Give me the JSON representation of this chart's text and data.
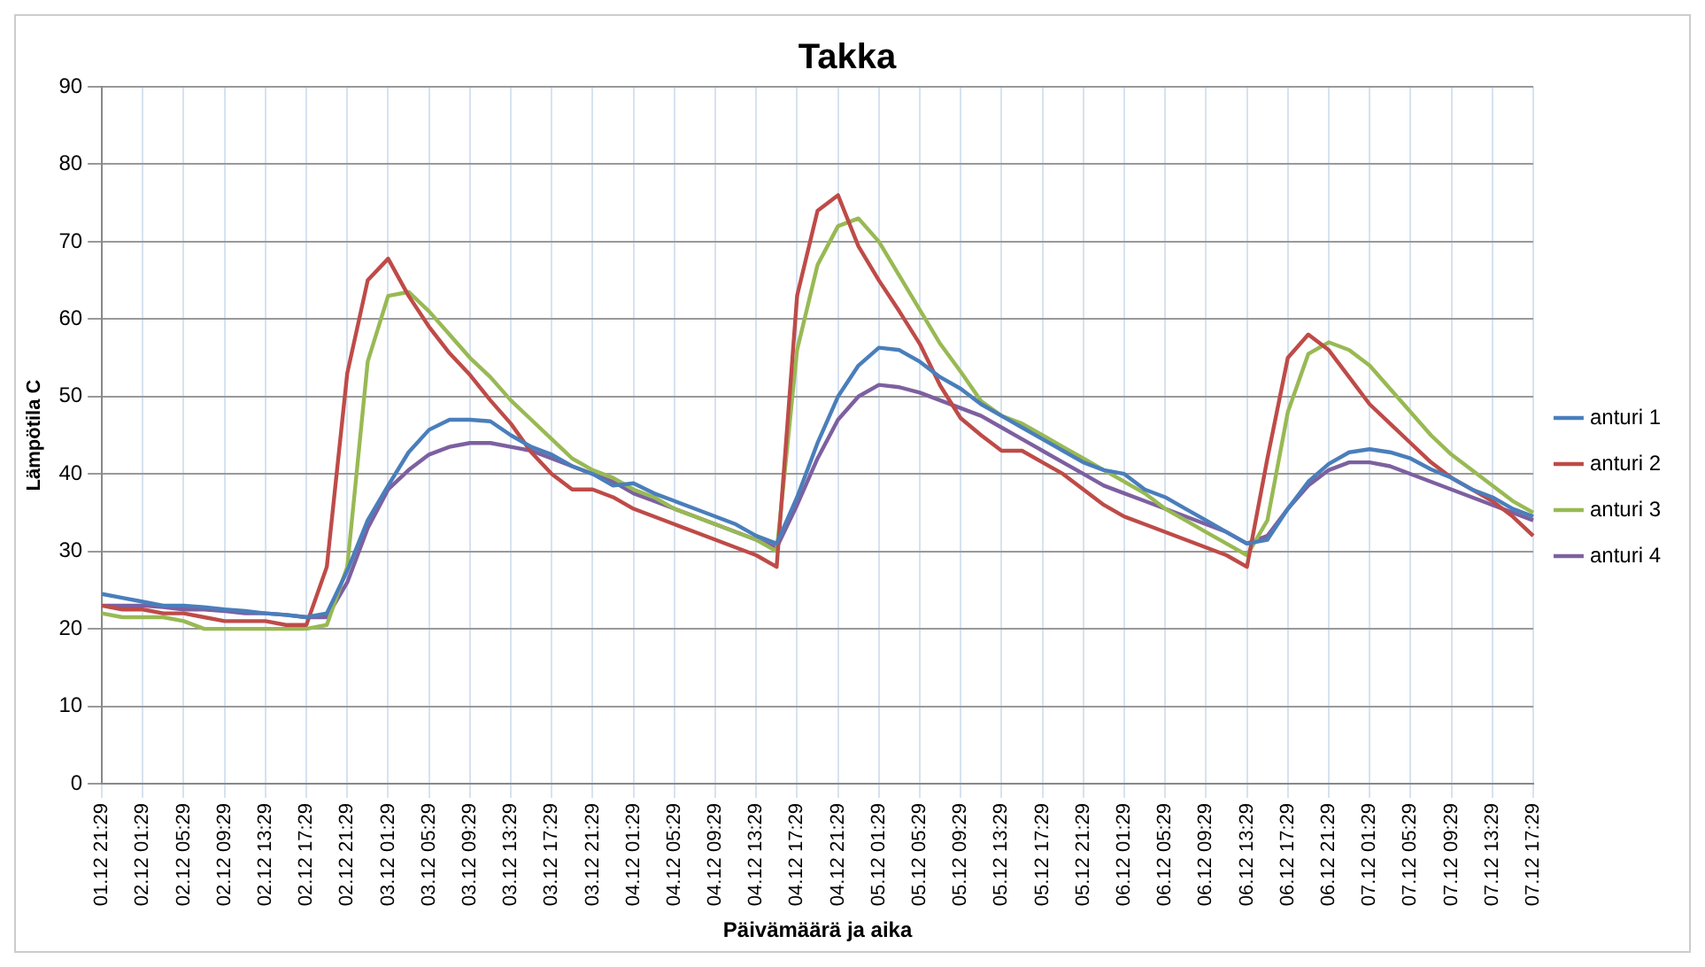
{
  "chart_data": {
    "type": "line",
    "title": "Takka",
    "xlabel": "Päivämäärä ja aika",
    "ylabel": "Lämpötila C",
    "categories": [
      "01.12 21:29",
      null,
      "02.12 01:29",
      null,
      "02.12 05:29",
      null,
      "02.12 09:29",
      null,
      "02.12 13:29",
      null,
      "02.12 17:29",
      null,
      "02.12 21:29",
      null,
      "03.12 01:29",
      null,
      "03.12 05:29",
      null,
      "03.12 09:29",
      null,
      "03.12 13:29",
      null,
      "03.12 17:29",
      null,
      "03.12 21:29",
      null,
      "04.12 01:29",
      null,
      "04.12 05:29",
      null,
      "04.12 09:29",
      null,
      "04.12 13:29",
      null,
      "04.12 17:29",
      null,
      "04.12 21:29",
      null,
      "05.12 01:29",
      null,
      "05.12 05:29",
      null,
      "05.12 09:29",
      null,
      "05.12 13:29",
      null,
      "05.12 17:29",
      null,
      "05.12 21:29",
      null,
      "06.12 01:29",
      null,
      "06.12 05:29",
      null,
      "06.12 09:29",
      null,
      "06.12 13:29",
      null,
      "06.12 17:29",
      null,
      "06.12 21:29",
      null,
      "07.12 01:29",
      null,
      "07.12 05:29",
      null,
      "07.12 09:29",
      null,
      "07.12 13:29",
      null,
      "07.12 17:29"
    ],
    "ylim": [
      0,
      90
    ],
    "yticks": [
      0,
      10,
      20,
      30,
      40,
      50,
      60,
      70,
      80,
      90
    ],
    "grid": true,
    "legend": "right",
    "marker": "none",
    "line_style": "solid",
    "series": [
      {
        "name": "anturi 1",
        "color": "#4a7ebb",
        "values": [
          24.5,
          24,
          23.5,
          23,
          23,
          22.8,
          22.5,
          22.3,
          22,
          21.8,
          21.5,
          22,
          27.5,
          34,
          38.5,
          42.8,
          45.7,
          47,
          47,
          46.8,
          45,
          43.5,
          42.5,
          41,
          40,
          38.5,
          38.8,
          37.5,
          36.5,
          35.5,
          34.5,
          33.5,
          32,
          31,
          37,
          44,
          50,
          54,
          56.3,
          56,
          54.5,
          52.5,
          51,
          49,
          47.5,
          46,
          44.5,
          43,
          41.5,
          40.5,
          40,
          38,
          37,
          35.5,
          34,
          32.5,
          31,
          31.5,
          35.5,
          39,
          41.3,
          42.8,
          43.2,
          42.8,
          42,
          40.6,
          39.5,
          38,
          37,
          35.5,
          34.5
        ]
      },
      {
        "name": "anturi 2",
        "color": "#be4b48",
        "values": [
          23,
          22.5,
          22.5,
          22,
          22,
          21.5,
          21,
          21,
          21,
          20.5,
          20.5,
          28,
          53,
          65,
          67.8,
          63,
          59,
          55.6,
          52.8,
          49.5,
          46.5,
          42.8,
          40,
          38,
          38,
          37,
          35.5,
          34.5,
          33.5,
          32.5,
          31.5,
          30.5,
          29.5,
          28,
          63,
          74,
          76,
          69.4,
          65,
          61,
          56.8,
          51.4,
          47.2,
          45,
          43,
          43,
          41.5,
          40,
          38,
          36,
          34.5,
          33.5,
          32.5,
          31.5,
          30.5,
          29.5,
          28,
          42,
          55,
          58,
          56,
          52.5,
          49,
          46.5,
          44,
          41.5,
          39.5,
          38,
          36.5,
          34.5,
          32
        ]
      },
      {
        "name": "anturi 3",
        "color": "#98b954",
        "values": [
          22,
          21.5,
          21.5,
          21.5,
          21,
          20,
          20,
          20,
          20,
          20,
          20,
          20.5,
          28,
          54.5,
          63,
          63.5,
          61,
          58,
          55,
          52.5,
          49.5,
          47,
          44.5,
          42,
          40.5,
          39.5,
          38,
          37,
          35.5,
          34.5,
          33.5,
          32.5,
          31.5,
          30,
          56,
          67,
          72,
          73,
          70,
          65.6,
          61.2,
          56.8,
          53.2,
          49.4,
          47.5,
          46.5,
          45,
          43.5,
          42,
          40.5,
          39,
          37.5,
          35.5,
          34,
          32.5,
          31,
          29.5,
          34,
          48,
          55.5,
          57,
          56,
          54,
          51,
          48,
          45,
          42.5,
          40.5,
          38.5,
          36.5,
          35
        ]
      },
      {
        "name": "anturi 4",
        "color": "#7d60a0",
        "values": [
          23,
          23,
          23,
          22.8,
          22.5,
          22.5,
          22.3,
          22,
          22,
          21.8,
          21.5,
          21.5,
          26,
          33,
          38,
          40.5,
          42.5,
          43.5,
          44,
          44,
          43.5,
          43,
          42,
          41,
          40,
          39,
          37.5,
          36.5,
          35.5,
          34.5,
          33.5,
          32.5,
          31.5,
          30.5,
          36,
          42,
          47,
          50,
          51.5,
          51.2,
          50.5,
          49.5,
          48.5,
          47.5,
          46,
          44.5,
          43,
          41.5,
          40,
          38.5,
          37.5,
          36.5,
          35.5,
          34.5,
          33.5,
          32.5,
          31,
          32,
          35.5,
          38.5,
          40.5,
          41.5,
          41.5,
          41,
          40,
          39,
          38,
          37,
          36,
          35,
          34
        ]
      }
    ]
  }
}
